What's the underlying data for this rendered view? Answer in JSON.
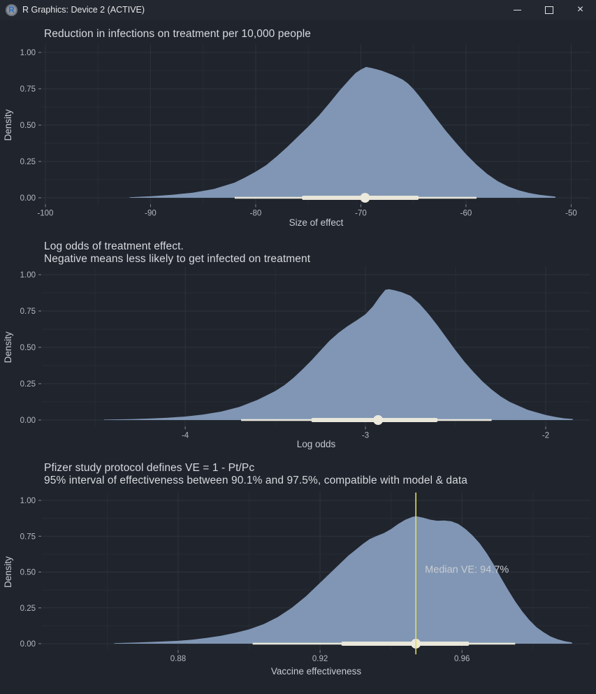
{
  "window": {
    "title": "R Graphics: Device 2 (ACTIVE)",
    "controls": {
      "minimize": "minimize",
      "maximize": "maximize",
      "close": "close"
    }
  },
  "theme": {
    "background": "#20242d",
    "titlebar_bg": "#23272f",
    "density_fill": "#8096b4",
    "interval_color": "#e9e6da",
    "median_point_color": "#ece9dd",
    "vline_color": "#dfdc5a",
    "grid_major": "#2d333d",
    "grid_minor": "#272c35",
    "axis_text": "#b4b8bf",
    "axis_title_text": "#c6cad0",
    "tick_mark": "#81868d",
    "annotation_text": "#c9ccd1"
  },
  "chart_data": [
    {
      "type": "area",
      "title": "Reduction in infections on treatment per 10,000 people",
      "xlabel": "Size of effect",
      "ylabel": "Density",
      "xlim": [
        -100.33,
        -48.17
      ],
      "ylim": [
        0,
        1.0
      ],
      "x_ticks_major": [
        -100,
        -90,
        -80,
        -70,
        -60,
        -50
      ],
      "x_tick_labels": [
        "-100",
        "-90",
        "-80",
        "-70",
        "-60",
        "-50"
      ],
      "x_ticks_minor": [
        -95,
        -85,
        -75,
        -65,
        -55
      ],
      "y_ticks_major": [
        0,
        0.25,
        0.5,
        0.75,
        1
      ],
      "y_tick_labels": [
        "0.00",
        "0.25",
        "0.50",
        "0.75",
        "1.00"
      ],
      "y_ticks_minor": [
        0.125,
        0.375,
        0.625,
        0.875
      ],
      "interval": {
        "outer": [
          -82,
          -59
        ],
        "inner": [
          -75.6,
          -64.5
        ],
        "median": -69.6
      },
      "density": [
        [
          -92,
          0.004
        ],
        [
          -90,
          0.01
        ],
        [
          -88,
          0.02
        ],
        [
          -86,
          0.035
        ],
        [
          -84,
          0.06
        ],
        [
          -82,
          0.105
        ],
        [
          -81,
          0.14
        ],
        [
          -80,
          0.18
        ],
        [
          -79,
          0.225
        ],
        [
          -78,
          0.285
        ],
        [
          -77,
          0.35
        ],
        [
          -76,
          0.42
        ],
        [
          -75,
          0.49
        ],
        [
          -74,
          0.565
        ],
        [
          -73,
          0.65
        ],
        [
          -72,
          0.74
        ],
        [
          -71,
          0.82
        ],
        [
          -70.5,
          0.858
        ],
        [
          -70,
          0.882
        ],
        [
          -69.5,
          0.9
        ],
        [
          -69,
          0.893
        ],
        [
          -68.5,
          0.884
        ],
        [
          -68,
          0.874
        ],
        [
          -67.5,
          0.86
        ],
        [
          -67,
          0.846
        ],
        [
          -66.5,
          0.83
        ],
        [
          -66,
          0.812
        ],
        [
          -65.5,
          0.785
        ],
        [
          -65,
          0.748
        ],
        [
          -64.5,
          0.705
        ],
        [
          -64,
          0.658
        ],
        [
          -63,
          0.562
        ],
        [
          -62,
          0.468
        ],
        [
          -61,
          0.382
        ],
        [
          -60,
          0.3
        ],
        [
          -59,
          0.228
        ],
        [
          -58,
          0.165
        ],
        [
          -57,
          0.115
        ],
        [
          -56,
          0.078
        ],
        [
          -55,
          0.052
        ],
        [
          -54,
          0.033
        ],
        [
          -53,
          0.02
        ],
        [
          -52,
          0.012
        ],
        [
          -51.5,
          0.008
        ]
      ]
    },
    {
      "type": "area",
      "title": "Log odds of treatment effect.\nNegative means less likely to get infected on treatment",
      "xlabel": "Log odds",
      "ylabel": "Density",
      "xlim": [
        -4.795,
        -1.752
      ],
      "ylim": [
        0,
        1.0
      ],
      "x_ticks_major": [
        -4,
        -3,
        -2
      ],
      "x_tick_labels": [
        "-4",
        "-3",
        "-2"
      ],
      "x_ticks_minor": [
        -4.5,
        -3.5,
        -2.5
      ],
      "y_ticks_major": [
        0,
        0.25,
        0.5,
        0.75,
        1
      ],
      "y_tick_labels": [
        "0.00",
        "0.25",
        "0.50",
        "0.75",
        "1.00"
      ],
      "y_ticks_minor": [
        0.125,
        0.375,
        0.625,
        0.875
      ],
      "interval": {
        "outer": [
          -3.69,
          -2.3
        ],
        "inner": [
          -3.3,
          -2.6
        ],
        "median": -2.93
      },
      "density": [
        [
          -4.45,
          0.003
        ],
        [
          -4.3,
          0.006
        ],
        [
          -4.2,
          0.01
        ],
        [
          -4.1,
          0.016
        ],
        [
          -4.0,
          0.024
        ],
        [
          -3.9,
          0.038
        ],
        [
          -3.8,
          0.058
        ],
        [
          -3.7,
          0.09
        ],
        [
          -3.6,
          0.138
        ],
        [
          -3.5,
          0.2
        ],
        [
          -3.45,
          0.24
        ],
        [
          -3.4,
          0.29
        ],
        [
          -3.35,
          0.348
        ],
        [
          -3.3,
          0.41
        ],
        [
          -3.25,
          0.478
        ],
        [
          -3.2,
          0.545
        ],
        [
          -3.15,
          0.6
        ],
        [
          -3.1,
          0.645
        ],
        [
          -3.05,
          0.685
        ],
        [
          -3.0,
          0.728
        ],
        [
          -2.96,
          0.78
        ],
        [
          -2.92,
          0.85
        ],
        [
          -2.89,
          0.895
        ],
        [
          -2.87,
          0.9
        ],
        [
          -2.84,
          0.893
        ],
        [
          -2.8,
          0.88
        ],
        [
          -2.75,
          0.855
        ],
        [
          -2.7,
          0.8
        ],
        [
          -2.65,
          0.73
        ],
        [
          -2.6,
          0.65
        ],
        [
          -2.55,
          0.565
        ],
        [
          -2.5,
          0.48
        ],
        [
          -2.45,
          0.4
        ],
        [
          -2.4,
          0.33
        ],
        [
          -2.35,
          0.265
        ],
        [
          -2.3,
          0.21
        ],
        [
          -2.25,
          0.163
        ],
        [
          -2.2,
          0.125
        ],
        [
          -2.1,
          0.07
        ],
        [
          -2.0,
          0.035
        ],
        [
          -1.95,
          0.022
        ],
        [
          -1.9,
          0.012
        ],
        [
          -1.85,
          0.007
        ]
      ]
    },
    {
      "type": "area",
      "title": "Pfizer study protocol defines VE = 1 - Pt/Pc\n95% interval of effectiveness between 90.1% and 97.5%, compatible with model & data",
      "xlabel": "Vaccine effectiveness",
      "ylabel": "Density",
      "xlim": [
        0.8416,
        0.9962
      ],
      "ylim": [
        0,
        1.0
      ],
      "x_ticks_major": [
        0.88,
        0.92,
        0.96
      ],
      "x_tick_labels": [
        "0.88",
        "0.92",
        "0.96"
      ],
      "x_ticks_minor": [
        0.86,
        0.9,
        0.94,
        0.98
      ],
      "y_ticks_major": [
        0,
        0.25,
        0.5,
        0.75,
        1
      ],
      "y_tick_labels": [
        "0.00",
        "0.25",
        "0.50",
        "0.75",
        "1.00"
      ],
      "y_ticks_minor": [
        0.125,
        0.375,
        0.625,
        0.875
      ],
      "interval": {
        "outer": [
          0.901,
          0.975
        ],
        "inner": [
          0.926,
          0.962
        ],
        "median": 0.947
      },
      "vline": {
        "x": 0.947,
        "label": "Median VE: 94.7%",
        "label_y": 0.52
      },
      "density": [
        [
          0.862,
          0.004
        ],
        [
          0.868,
          0.008
        ],
        [
          0.874,
          0.013
        ],
        [
          0.88,
          0.02
        ],
        [
          0.884,
          0.028
        ],
        [
          0.888,
          0.04
        ],
        [
          0.892,
          0.055
        ],
        [
          0.896,
          0.075
        ],
        [
          0.9,
          0.1
        ],
        [
          0.904,
          0.135
        ],
        [
          0.908,
          0.185
        ],
        [
          0.912,
          0.25
        ],
        [
          0.916,
          0.33
        ],
        [
          0.92,
          0.425
        ],
        [
          0.924,
          0.52
        ],
        [
          0.928,
          0.615
        ],
        [
          0.93,
          0.655
        ],
        [
          0.932,
          0.695
        ],
        [
          0.934,
          0.73
        ],
        [
          0.936,
          0.752
        ],
        [
          0.938,
          0.772
        ],
        [
          0.94,
          0.8
        ],
        [
          0.942,
          0.835
        ],
        [
          0.944,
          0.865
        ],
        [
          0.946,
          0.885
        ],
        [
          0.947,
          0.89
        ],
        [
          0.949,
          0.88
        ],
        [
          0.951,
          0.866
        ],
        [
          0.953,
          0.858
        ],
        [
          0.955,
          0.86
        ],
        [
          0.957,
          0.854
        ],
        [
          0.959,
          0.835
        ],
        [
          0.961,
          0.8
        ],
        [
          0.963,
          0.755
        ],
        [
          0.965,
          0.7
        ],
        [
          0.967,
          0.63
        ],
        [
          0.969,
          0.55
        ],
        [
          0.971,
          0.46
        ],
        [
          0.973,
          0.375
        ],
        [
          0.975,
          0.295
        ],
        [
          0.977,
          0.225
        ],
        [
          0.979,
          0.165
        ],
        [
          0.981,
          0.115
        ],
        [
          0.983,
          0.08
        ],
        [
          0.985,
          0.05
        ],
        [
          0.987,
          0.03
        ],
        [
          0.989,
          0.017
        ],
        [
          0.991,
          0.009
        ]
      ]
    }
  ]
}
